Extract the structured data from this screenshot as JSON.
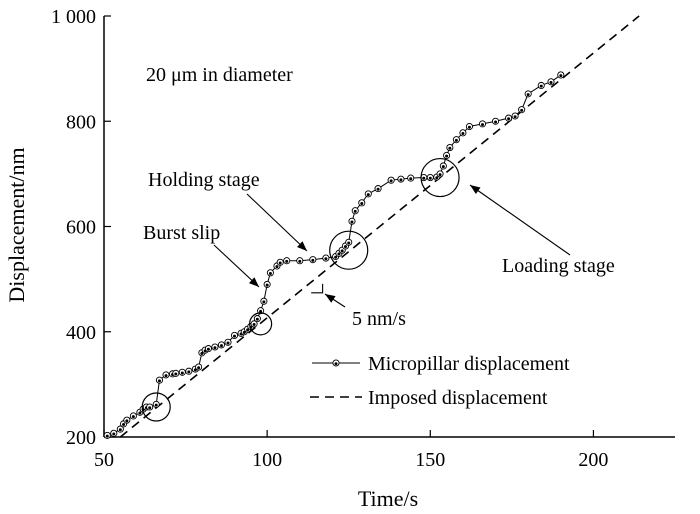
{
  "chart_data": {
    "type": "line",
    "title": "",
    "xlabel": "Time/s",
    "ylabel": "Displacement/nm",
    "xlim": [
      50,
      225
    ],
    "ylim": [
      200,
      1000
    ],
    "x_ticks": [
      50,
      100,
      150,
      200
    ],
    "x_tick_labels": [
      "50",
      "100",
      "150",
      "200"
    ],
    "y_ticks": [
      200,
      400,
      600,
      800,
      1000
    ],
    "y_tick_labels": [
      "200",
      "400",
      "600",
      "800",
      "1 000"
    ],
    "grid": false,
    "legend_position": "bottom-right",
    "series": [
      {
        "name": "Micropillar displacement",
        "style": "solid-with-dots",
        "x": [
          51,
          53,
          55,
          56,
          57,
          59,
          61,
          62,
          63,
          64,
          66,
          67,
          69,
          71,
          72,
          74,
          76,
          78,
          79,
          80,
          81,
          82,
          84,
          86,
          88,
          90,
          92,
          93,
          94,
          95,
          96,
          97,
          98,
          99,
          100,
          101,
          103,
          104,
          106,
          110,
          114,
          118,
          121,
          122,
          123,
          124,
          125,
          126,
          127,
          129,
          131,
          134,
          138,
          141,
          144,
          148,
          150,
          152,
          153,
          154,
          155,
          156,
          158,
          160,
          162,
          166,
          170,
          174,
          176,
          178,
          180,
          184,
          187,
          190
        ],
        "y": [
          203,
          207,
          215,
          225,
          232,
          240,
          247,
          253,
          257,
          257,
          262,
          308,
          318,
          320,
          321,
          323,
          325,
          329,
          333,
          360,
          365,
          368,
          371,
          375,
          380,
          393,
          397,
          400,
          405,
          410,
          415,
          425,
          440,
          458,
          490,
          512,
          525,
          532,
          535,
          535,
          537,
          540,
          543,
          549,
          555,
          563,
          570,
          610,
          630,
          645,
          662,
          672,
          688,
          690,
          692,
          693,
          693,
          694,
          700,
          715,
          735,
          750,
          765,
          778,
          790,
          795,
          800,
          806,
          810,
          822,
          852,
          868,
          875,
          888
        ]
      },
      {
        "name": "Imposed displacement",
        "style": "dashed",
        "x": [
          55,
          214
        ],
        "y": [
          200,
          1000
        ]
      }
    ],
    "annotations": [
      {
        "text": "20 μm in diameter"
      },
      {
        "text": "Holding stage"
      },
      {
        "text": "Burst slip"
      },
      {
        "text": "Loading stage"
      },
      {
        "text": "5 nm/s"
      }
    ]
  }
}
